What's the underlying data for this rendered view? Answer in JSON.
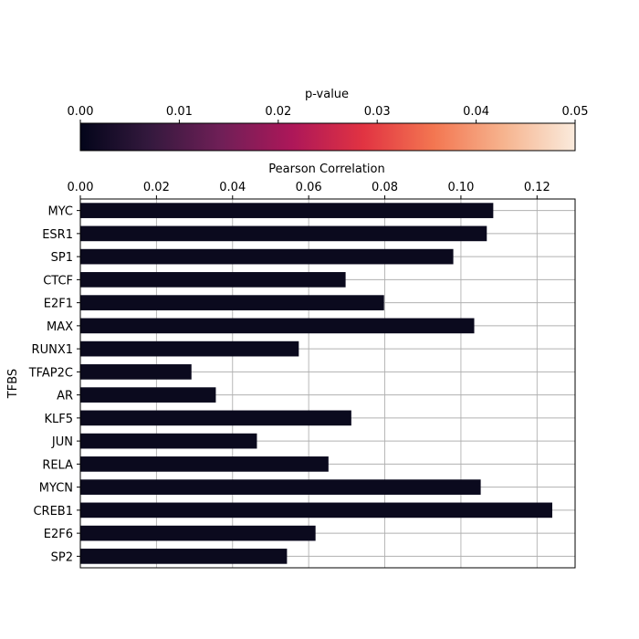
{
  "chart_data": {
    "type": "bar",
    "orientation": "horizontal",
    "xlabel": "Pearson Correlation",
    "ylabel": "TFBS",
    "xlim": [
      0,
      0.13
    ],
    "xticks": [
      "0.00",
      "0.02",
      "0.04",
      "0.06",
      "0.08",
      "0.10",
      "0.12"
    ],
    "x_axis_position": "top",
    "grid": true,
    "bar_color": "#0b0a1e",
    "categories": [
      "MYC",
      "ESR1",
      "SP1",
      "CTCF",
      "E2F1",
      "MAX",
      "RUNX1",
      "TFAP2C",
      "AR",
      "KLF5",
      "JUN",
      "RELA",
      "MYCN",
      "CREB1",
      "E2F6",
      "SP2"
    ],
    "values": [
      0.1085,
      0.1068,
      0.098,
      0.0697,
      0.0798,
      0.1035,
      0.0574,
      0.0292,
      0.0356,
      0.0712,
      0.0464,
      0.0652,
      0.1052,
      0.124,
      0.0618,
      0.0543
    ],
    "colorbar": {
      "label": "p-value",
      "range": [
        0,
        0.05
      ],
      "ticks": [
        "0.00",
        "0.01",
        "0.02",
        "0.03",
        "0.04",
        "0.05"
      ],
      "colormap": [
        "#03051a",
        "#35193e",
        "#701f57",
        "#ad1759",
        "#e13342",
        "#f37651",
        "#f6b48f",
        "#faebdd"
      ],
      "position": "top"
    }
  }
}
